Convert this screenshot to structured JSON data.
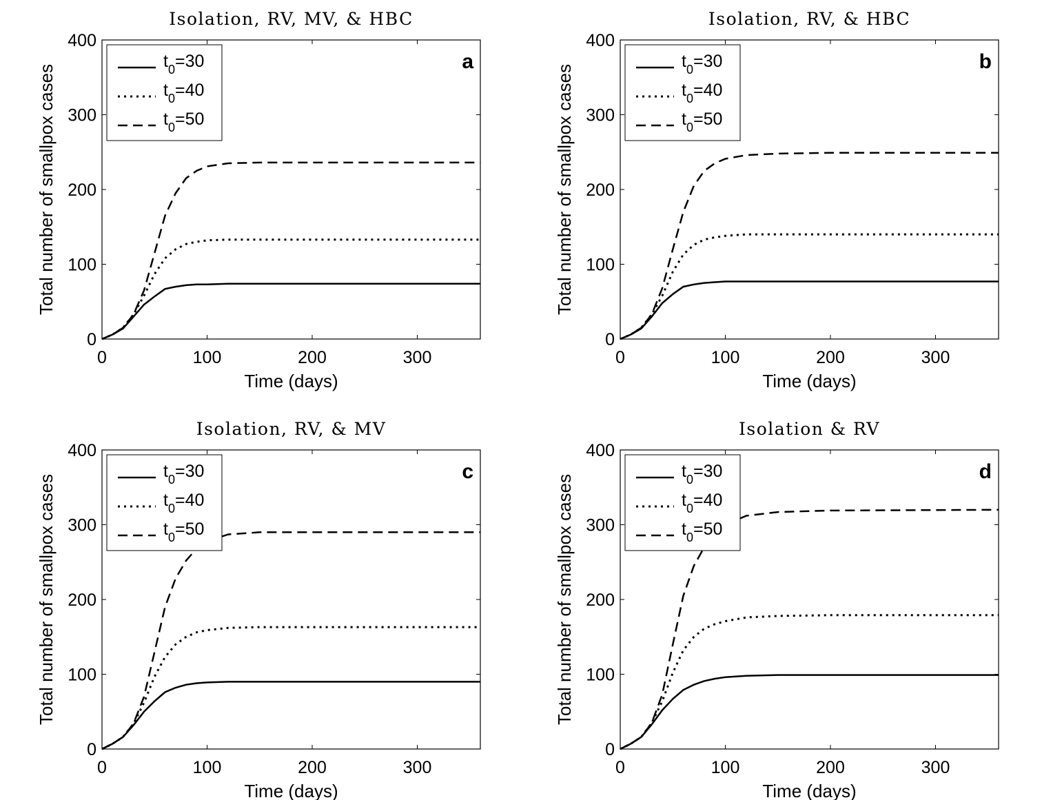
{
  "chart_data": [
    {
      "type": "line",
      "panel_label": "a",
      "title": "Isolation, RV, MV, & HBC",
      "xlabel": "Time (days)",
      "ylabel": "Total number of smallpox cases",
      "xlim": [
        0,
        360
      ],
      "ylim": [
        0,
        400
      ],
      "xticks": [
        "0",
        "100",
        "200",
        "300"
      ],
      "yticks": [
        "0",
        "100",
        "200",
        "300",
        "400"
      ],
      "legend_position": "top-left",
      "series": [
        {
          "name": "t0=30",
          "legend_main": "t",
          "legend_sub": "0",
          "legend_rest": "=30",
          "style": "solid",
          "x": [
            0,
            10,
            20,
            30,
            40,
            50,
            60,
            70,
            80,
            90,
            100,
            120,
            150,
            200,
            360
          ],
          "y": [
            0,
            6,
            14,
            30,
            46,
            57,
            67,
            70,
            72,
            73,
            73,
            74,
            74,
            74,
            74
          ]
        },
        {
          "name": "t0=40",
          "legend_main": "t",
          "legend_sub": "0",
          "legend_rest": "=40",
          "style": "dotted",
          "x": [
            0,
            10,
            20,
            30,
            40,
            50,
            60,
            70,
            80,
            90,
            100,
            120,
            150,
            200,
            360
          ],
          "y": [
            0,
            6,
            15,
            33,
            58,
            87,
            108,
            120,
            127,
            130,
            132,
            133,
            133,
            133,
            133
          ]
        },
        {
          "name": "t0=50",
          "legend_main": "t",
          "legend_sub": "0",
          "legend_rest": "=50",
          "style": "dashed",
          "x": [
            0,
            10,
            20,
            30,
            40,
            50,
            60,
            70,
            80,
            90,
            100,
            120,
            150,
            200,
            360
          ],
          "y": [
            0,
            6,
            15,
            33,
            65,
            115,
            165,
            195,
            215,
            225,
            231,
            235,
            236,
            236,
            236
          ]
        }
      ]
    },
    {
      "type": "line",
      "panel_label": "b",
      "title": "Isolation, RV, & HBC",
      "xlabel": "Time (days)",
      "ylabel": "Total number of smallpox cases",
      "xlim": [
        0,
        360
      ],
      "ylim": [
        0,
        400
      ],
      "xticks": [
        "0",
        "100",
        "200",
        "300"
      ],
      "yticks": [
        "0",
        "100",
        "200",
        "300",
        "400"
      ],
      "legend_position": "top-left",
      "series": [
        {
          "name": "t0=30",
          "legend_main": "t",
          "legend_sub": "0",
          "legend_rest": "=30",
          "style": "solid",
          "x": [
            0,
            10,
            20,
            30,
            40,
            50,
            60,
            70,
            80,
            90,
            100,
            120,
            150,
            200,
            360
          ],
          "y": [
            0,
            6,
            14,
            30,
            48,
            60,
            70,
            73,
            75,
            76,
            77,
            77,
            77,
            77,
            77
          ]
        },
        {
          "name": "t0=40",
          "legend_main": "t",
          "legend_sub": "0",
          "legend_rest": "=40",
          "style": "dotted",
          "x": [
            0,
            10,
            20,
            30,
            40,
            50,
            60,
            70,
            80,
            90,
            100,
            120,
            150,
            200,
            360
          ],
          "y": [
            0,
            6,
            15,
            33,
            58,
            90,
            113,
            126,
            133,
            136,
            138,
            140,
            140,
            140,
            140
          ]
        },
        {
          "name": "t0=50",
          "legend_main": "t",
          "legend_sub": "0",
          "legend_rest": "=50",
          "style": "dashed",
          "x": [
            0,
            10,
            20,
            30,
            40,
            50,
            60,
            70,
            80,
            90,
            100,
            120,
            150,
            200,
            360
          ],
          "y": [
            0,
            6,
            15,
            33,
            68,
            120,
            170,
            205,
            225,
            235,
            241,
            246,
            248,
            249,
            249
          ]
        }
      ]
    },
    {
      "type": "line",
      "panel_label": "c",
      "title": "Isolation, RV, & MV",
      "xlabel": "Time (days)",
      "ylabel": "Total number of smallpox cases",
      "xlim": [
        0,
        360
      ],
      "ylim": [
        0,
        400
      ],
      "xticks": [
        "0",
        "100",
        "200",
        "300"
      ],
      "yticks": [
        "0",
        "100",
        "200",
        "300",
        "400"
      ],
      "legend_position": "top-left",
      "series": [
        {
          "name": "t0=30",
          "legend_main": "t",
          "legend_sub": "0",
          "legend_rest": "=30",
          "style": "solid",
          "x": [
            0,
            10,
            20,
            30,
            40,
            50,
            60,
            70,
            80,
            90,
            100,
            120,
            150,
            200,
            360
          ],
          "y": [
            0,
            7,
            16,
            32,
            50,
            64,
            76,
            82,
            86,
            88,
            89,
            90,
            90,
            90,
            90
          ]
        },
        {
          "name": "t0=40",
          "legend_main": "t",
          "legend_sub": "0",
          "legend_rest": "=40",
          "style": "dotted",
          "x": [
            0,
            10,
            20,
            30,
            40,
            50,
            60,
            70,
            80,
            90,
            100,
            120,
            150,
            200,
            360
          ],
          "y": [
            0,
            7,
            16,
            34,
            62,
            97,
            123,
            140,
            150,
            156,
            159,
            162,
            163,
            163,
            163
          ]
        },
        {
          "name": "t0=50",
          "legend_main": "t",
          "legend_sub": "0",
          "legend_rest": "=50",
          "style": "dashed",
          "x": [
            0,
            10,
            20,
            30,
            40,
            50,
            60,
            70,
            80,
            90,
            100,
            120,
            150,
            200,
            360
          ],
          "y": [
            0,
            7,
            16,
            34,
            70,
            130,
            190,
            228,
            252,
            268,
            278,
            287,
            290,
            290,
            290
          ]
        }
      ]
    },
    {
      "type": "line",
      "panel_label": "d",
      "title": "Isolation & RV",
      "xlabel": "Time (days)",
      "ylabel": "Total number of smallpox cases",
      "xlim": [
        0,
        360
      ],
      "ylim": [
        0,
        400
      ],
      "xticks": [
        "0",
        "100",
        "200",
        "300"
      ],
      "yticks": [
        "0",
        "100",
        "200",
        "300",
        "400"
      ],
      "legend_position": "top-left",
      "series": [
        {
          "name": "t0=30",
          "legend_main": "t",
          "legend_sub": "0",
          "legend_rest": "=30",
          "style": "solid",
          "x": [
            0,
            10,
            20,
            30,
            40,
            50,
            60,
            70,
            80,
            90,
            100,
            120,
            150,
            200,
            360
          ],
          "y": [
            0,
            7,
            16,
            33,
            52,
            67,
            79,
            86,
            91,
            94,
            96,
            98,
            99,
            99,
            99
          ]
        },
        {
          "name": "t0=40",
          "legend_main": "t",
          "legend_sub": "0",
          "legend_rest": "=40",
          "style": "dotted",
          "x": [
            0,
            10,
            20,
            30,
            40,
            50,
            60,
            70,
            80,
            90,
            100,
            120,
            150,
            200,
            360
          ],
          "y": [
            0,
            7,
            16,
            35,
            64,
            102,
            132,
            150,
            161,
            167,
            171,
            176,
            178,
            179,
            179
          ]
        },
        {
          "name": "t0=50",
          "legend_main": "t",
          "legend_sub": "0",
          "legend_rest": "=50",
          "style": "dashed",
          "x": [
            0,
            10,
            20,
            30,
            40,
            50,
            60,
            70,
            80,
            90,
            100,
            120,
            150,
            200,
            360
          ],
          "y": [
            0,
            7,
            16,
            35,
            73,
            140,
            205,
            245,
            270,
            288,
            300,
            312,
            317,
            319,
            320
          ]
        }
      ]
    }
  ]
}
